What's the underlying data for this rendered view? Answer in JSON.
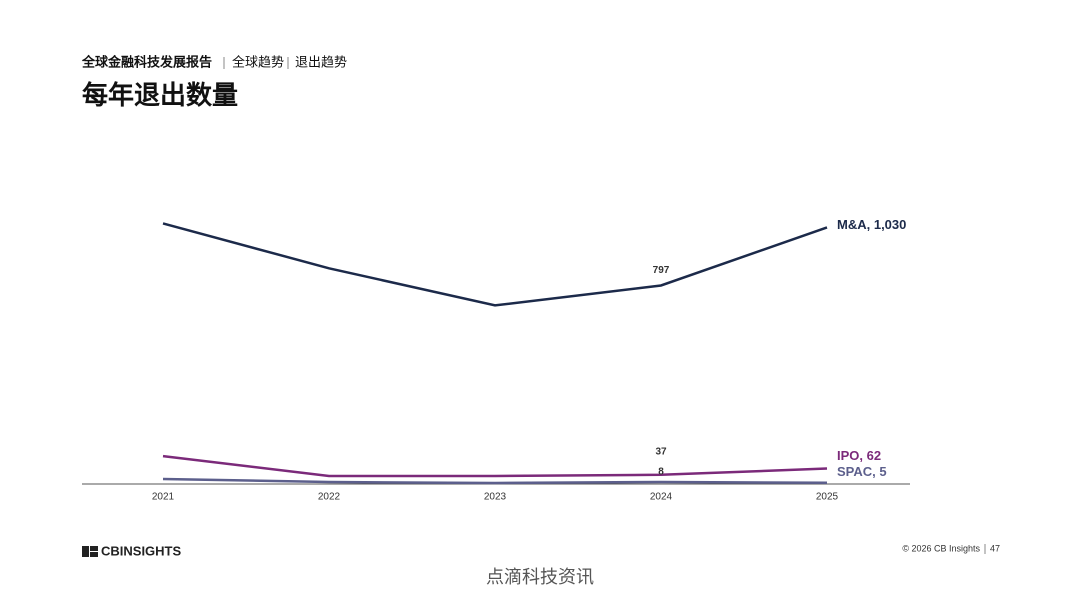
{
  "header": {
    "report": "全球金融科技发展报告",
    "section": "全球趋势",
    "subsection": "退出趋势"
  },
  "chart_data": {
    "type": "line",
    "title": "每年退出数量",
    "categories": [
      "2021",
      "2022",
      "2023",
      "2024",
      "2025"
    ],
    "ylim": [
      0,
      1100
    ],
    "series": [
      {
        "name": "M&A",
        "color": "#1c2a4a",
        "values": [
          1046,
          866,
          717,
          797,
          1030
        ],
        "value_labels": [
          null,
          null,
          null,
          "797",
          "1,030"
        ]
      },
      {
        "name": "IPO",
        "color": "#7b2a7a",
        "values": [
          112,
          32,
          32,
          37,
          62
        ],
        "value_labels": [
          null,
          null,
          null,
          "37",
          "62"
        ]
      },
      {
        "name": "SPAC",
        "color": "#5c5f8c",
        "values": [
          20,
          8,
          4,
          8,
          5
        ],
        "value_labels": [
          null,
          null,
          null,
          "8",
          "5"
        ]
      }
    ]
  },
  "footer": {
    "logo": "CBINSIGHTS",
    "copyright": "© 2026 CB Insights",
    "page": "47",
    "watermark": "点滴科技资讯"
  }
}
